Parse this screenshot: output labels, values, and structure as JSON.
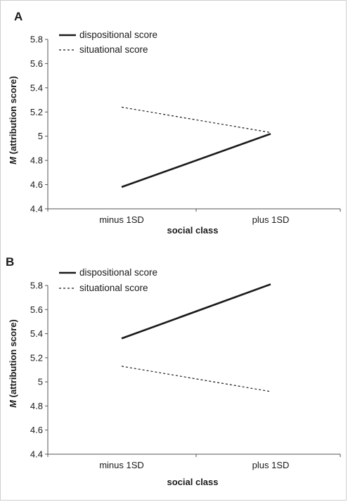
{
  "chart_data": [
    {
      "panel": "A",
      "type": "line",
      "categories": [
        "minus 1SD",
        "plus 1SD"
      ],
      "series": [
        {
          "name": "dispositional score",
          "values": [
            4.58,
            5.02
          ],
          "style": "solid"
        },
        {
          "name": "situational score",
          "values": [
            5.24,
            5.03
          ],
          "style": "dashed"
        }
      ],
      "xlabel": "social class",
      "ylabel_italic": "M",
      "ylabel_rest": " (attribution score)",
      "ylim": [
        4.4,
        5.8
      ],
      "yticks": [
        4.4,
        4.6,
        4.8,
        5,
        5.2,
        5.4,
        5.6,
        5.8
      ],
      "ytick_labels": [
        "4.4",
        "4.6",
        "4.8",
        "5",
        "5.2",
        "5.4",
        "5.6",
        "5.8"
      ],
      "legend_position": "top-left",
      "grid": false
    },
    {
      "panel": "B",
      "type": "line",
      "categories": [
        "minus 1SD",
        "plus 1SD"
      ],
      "series": [
        {
          "name": "dispositional score",
          "values": [
            5.36,
            5.81
          ],
          "style": "solid"
        },
        {
          "name": "situational score",
          "values": [
            5.13,
            4.92
          ],
          "style": "dashed"
        }
      ],
      "xlabel": "social class",
      "ylabel_italic": "M",
      "ylabel_rest": " (attribution score)",
      "ylim": [
        4.4,
        5.8
      ],
      "yticks": [
        4.4,
        4.6,
        4.8,
        5,
        5.2,
        5.4,
        5.6,
        5.8
      ],
      "ytick_labels": [
        "4.4",
        "4.6",
        "4.8",
        "5",
        "5.2",
        "5.4",
        "5.6",
        "5.8"
      ],
      "legend_position": "top-left",
      "grid": false
    }
  ],
  "colors": {
    "line": "#1a1a1a",
    "axis": "#555555"
  }
}
